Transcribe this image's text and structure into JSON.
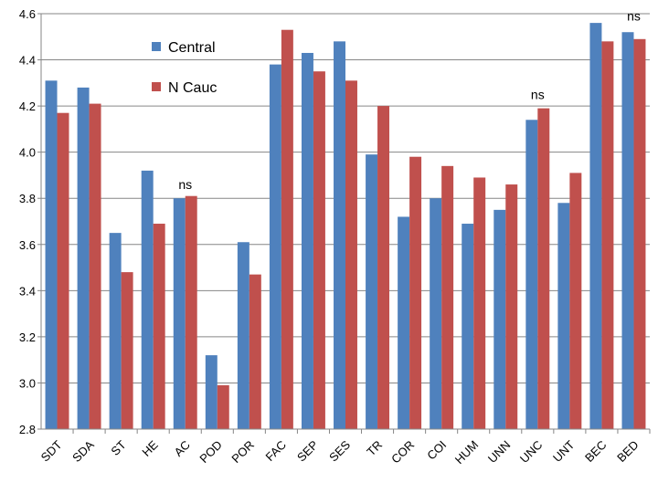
{
  "chart_data": {
    "type": "bar",
    "categories": [
      "SDT",
      "SDA",
      "ST",
      "HE",
      "AC",
      "POD",
      "POR",
      "FAC",
      "SEP",
      "SES",
      "TR",
      "COR",
      "COI",
      "HUM",
      "UNN",
      "UNC",
      "UNT",
      "BEC",
      "BED"
    ],
    "series": [
      {
        "name": "Central",
        "color": "#4f81bd",
        "values": [
          4.31,
          4.28,
          3.65,
          3.92,
          3.8,
          3.12,
          3.61,
          4.38,
          4.43,
          4.48,
          3.99,
          3.72,
          3.8,
          3.69,
          3.75,
          4.14,
          3.78,
          4.56,
          4.52
        ]
      },
      {
        "name": "N Cauc",
        "color": "#c0504d",
        "values": [
          4.17,
          4.21,
          3.48,
          3.69,
          3.81,
          2.99,
          3.47,
          4.53,
          4.35,
          4.31,
          4.2,
          3.98,
          3.94,
          3.89,
          3.86,
          4.19,
          3.91,
          4.48,
          4.49
        ]
      }
    ],
    "ylim": [
      2.8,
      4.6
    ],
    "yticks": [
      "2.8",
      "3.0",
      "3.2",
      "3.4",
      "3.6",
      "3.8",
      "4.0",
      "4.2",
      "4.4",
      "4.6"
    ],
    "grid": true,
    "legend": "top-left-inside",
    "annotations": [
      {
        "text": "ns",
        "category": "AC",
        "value": 3.84
      },
      {
        "text": "ns",
        "category": "UNC",
        "value": 4.23
      },
      {
        "text": "ns",
        "category": "BED",
        "value": 4.57
      }
    ]
  }
}
